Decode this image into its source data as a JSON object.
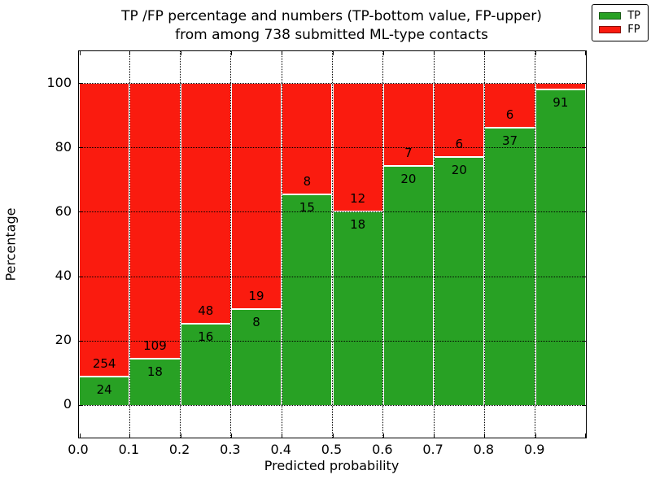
{
  "chart_data": {
    "type": "bar",
    "subtype": "stacked-percentage",
    "title_line1": "TP /FP percentage and numbers (TP-bottom value, FP-upper)",
    "title_line2": "from among 738 submitted ML-type contacts",
    "xlabel": "Predicted probability",
    "ylabel": "Percentage",
    "total_contacts": 738,
    "xlim": [
      0.0,
      1.0
    ],
    "ylim": [
      -10,
      110
    ],
    "grid": "dotted black, horizontal at y-ticks and vertical at x-ticks",
    "legend_position": "upper right",
    "xticks": [
      "0.0",
      "0.1",
      "0.2",
      "0.3",
      "0.4",
      "0.5",
      "0.6",
      "0.7",
      "0.8",
      "0.9"
    ],
    "yticks": [
      0,
      20,
      40,
      60,
      80,
      100
    ],
    "legend": [
      {
        "label": "TP",
        "color": "#28a124"
      },
      {
        "label": "FP",
        "color": "#fa1b0f"
      }
    ],
    "series_note": "Each bar spans 0.1 of predicted probability; green TP portion from 0 up to tp_pct, red FP portion stacked above up to 100%. Count labels: TP below boundary, FP above boundary.",
    "bars": [
      {
        "range": "0.0-0.1",
        "tp": 24,
        "fp": 254,
        "tp_pct": 8.63,
        "tp_label": "24",
        "fp_label": "254"
      },
      {
        "range": "0.1-0.2",
        "tp": 18,
        "fp": 109,
        "tp_pct": 14.17,
        "tp_label": "18",
        "fp_label": "109"
      },
      {
        "range": "0.2-0.3",
        "tp": 16,
        "fp": 48,
        "tp_pct": 25.0,
        "tp_label": "16",
        "fp_label": "48"
      },
      {
        "range": "0.3-0.4",
        "tp": 8,
        "fp": 19,
        "tp_pct": 29.63,
        "tp_label": "8",
        "fp_label": "19"
      },
      {
        "range": "0.4-0.5",
        "tp": 15,
        "fp": 8,
        "tp_pct": 65.22,
        "tp_label": "15",
        "fp_label": "8"
      },
      {
        "range": "0.5-0.6",
        "tp": 18,
        "fp": 12,
        "tp_pct": 60.0,
        "tp_label": "18",
        "fp_label": "12"
      },
      {
        "range": "0.6-0.7",
        "tp": 20,
        "fp": 7,
        "tp_pct": 74.07,
        "tp_label": "20",
        "fp_label": "7"
      },
      {
        "range": "0.7-0.8",
        "tp": 20,
        "fp": 6,
        "tp_pct": 76.92,
        "tp_label": "20",
        "fp_label": "6"
      },
      {
        "range": "0.8-0.9",
        "tp": 37,
        "fp": 6,
        "tp_pct": 86.05,
        "tp_label": "37",
        "fp_label": "6"
      },
      {
        "range": "0.9-1.0",
        "tp": 91,
        "fp": 2,
        "tp_pct": 97.85,
        "tp_label": "91",
        "fp_label": ""
      }
    ]
  }
}
